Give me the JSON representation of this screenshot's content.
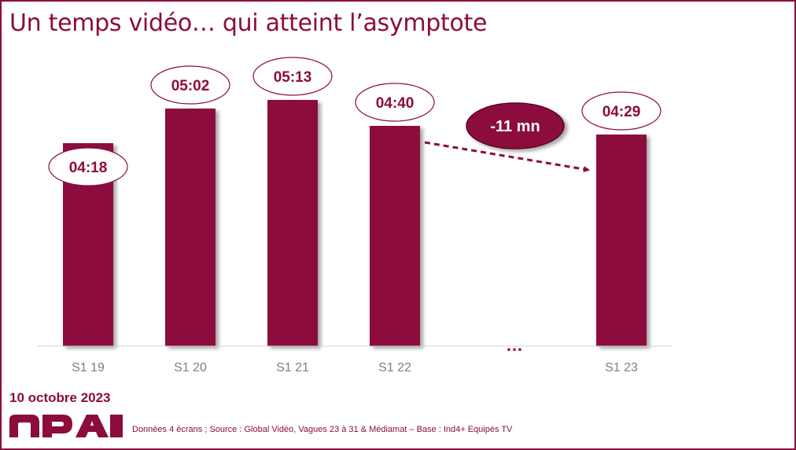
{
  "title": "Un temps vidéo… qui atteint l’asymptote",
  "date": "10 octobre 2023",
  "source": "Données 4 écrans ; Source : Global Vidéo, Vagues 23 à 31 & Médiamat – Base : Ind4+ Equipés TV",
  "logo_text": "nPa",
  "colors": {
    "accent": "#8c0c3c",
    "axis": "#d0d0d0",
    "label_bg": "#ffffff",
    "tick": "#7f7f7f"
  },
  "chart_data": {
    "type": "bar",
    "categories": [
      "S1 19",
      "S1 20",
      "S1 21",
      "S1 22",
      "…",
      "S1 23"
    ],
    "values": [
      258,
      302,
      313,
      280,
      null,
      269
    ],
    "data_labels": [
      "04:18",
      "05:02",
      "05:13",
      "04:40",
      "",
      "04:29"
    ],
    "value_unit": "seconds (mm:ss)",
    "gap_marker": "…",
    "annotation": {
      "text": "-11 mn",
      "from": "S1 22",
      "to": "S1 23"
    },
    "ylim": [
      0,
      340
    ],
    "grid": false
  }
}
